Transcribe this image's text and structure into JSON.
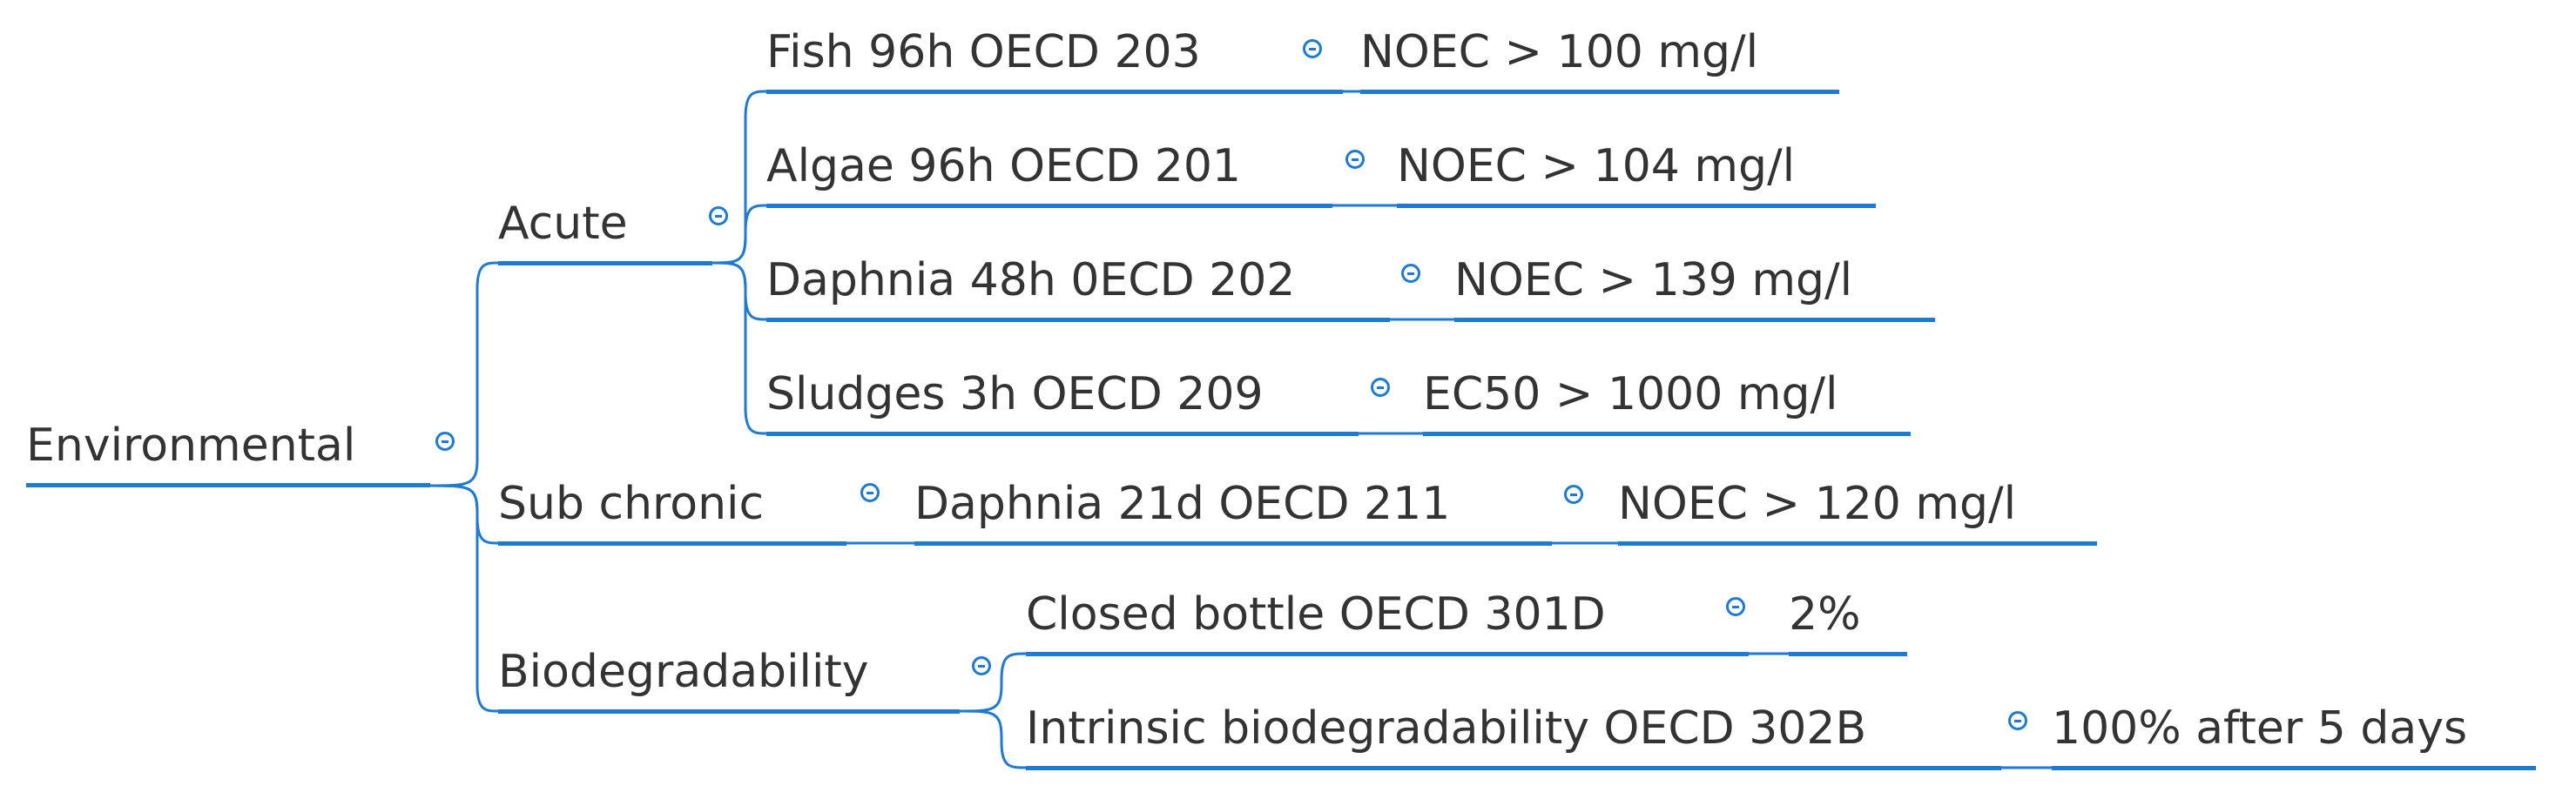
{
  "colors": {
    "line": "#1f7ad1",
    "text": "#333333",
    "background": "#ffffff"
  },
  "icons": {
    "collapse": "circle-minus-icon"
  },
  "root": {
    "label": "Environmental",
    "children": [
      {
        "label": "Acute",
        "children": [
          {
            "label": "Fish 96h OECD 203",
            "result": "NOEC > 100 mg/l"
          },
          {
            "label": "Algae 96h OECD 201",
            "result": "NOEC > 104 mg/l"
          },
          {
            "label": "Daphnia 48h 0ECD 202",
            "result": "NOEC > 139 mg/l"
          },
          {
            "label": "Sludges 3h OECD 209",
            "result": "EC50 > 1000 mg/l"
          }
        ]
      },
      {
        "label": "Sub chronic",
        "children": [
          {
            "label": "Daphnia 21d OECD 211",
            "result": "NOEC > 120 mg/l"
          }
        ]
      },
      {
        "label": "Biodegradability",
        "children": [
          {
            "label": "Closed bottle OECD 301D",
            "result": "2%"
          },
          {
            "label": "Intrinsic biodegradability OECD 302B",
            "result": "100% after 5 days"
          }
        ]
      }
    ]
  }
}
